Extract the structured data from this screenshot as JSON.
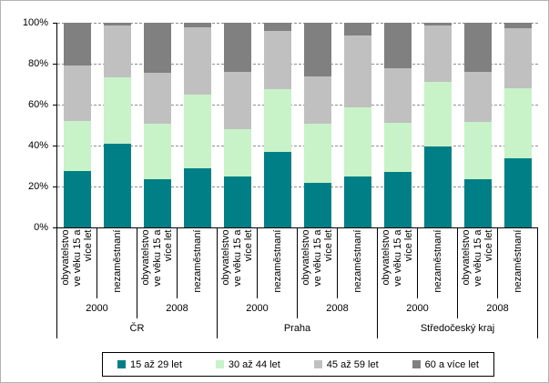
{
  "chart_data": {
    "type": "bar",
    "stacked": true,
    "percent_stacked": true,
    "title": "",
    "xlabel": "",
    "ylabel": "",
    "ylim": [
      0,
      100
    ],
    "y_tick_values": [
      0,
      20,
      40,
      60,
      80,
      100
    ],
    "y_tick_labels": [
      "0%",
      "20%",
      "40%",
      "60%",
      "80%",
      "100%"
    ],
    "grid": "horizontal dashed",
    "legend_position": "bottom",
    "series": [
      {
        "name": "15 až 29 let",
        "color": "#008086"
      },
      {
        "name": "30 až 44 let",
        "color": "#C8F2C8"
      },
      {
        "name": "45 až 59 let",
        "color": "#C0C0C0"
      },
      {
        "name": "60 a více let",
        "color": "#808080"
      }
    ],
    "category_label_lines": {
      "population": [
        "obyvatelstvo",
        "ve věku 15 a",
        "více let"
      ],
      "unemployed": [
        "nezaměstnaní"
      ]
    },
    "regions": [
      {
        "name": "ČR",
        "years": [
          {
            "year": "2000",
            "bars": [
              {
                "label": "obyvatelstvo ve věku 15 a více let",
                "label_key": "population",
                "values": [
                  27.5,
                  24.5,
                  27,
                  21
                ]
              },
              {
                "label": "nezaměstnaní",
                "label_key": "unemployed",
                "values": [
                  41,
                  32.5,
                  25,
                  1.5
                ]
              }
            ]
          },
          {
            "year": "2008",
            "bars": [
              {
                "label": "obyvatelstvo ve věku 15 a více let",
                "label_key": "population",
                "values": [
                  23.5,
                  27,
                  25,
                  24.5
                ]
              },
              {
                "label": "nezaměstnaní",
                "label_key": "unemployed",
                "values": [
                  29,
                  36,
                  33,
                  2
                ]
              }
            ]
          }
        ]
      },
      {
        "name": "Praha",
        "years": [
          {
            "year": "2000",
            "bars": [
              {
                "label": "obyvatelstvo ve věku 15 a více let",
                "label_key": "population",
                "values": [
                  25,
                  23,
                  28,
                  24
                ]
              },
              {
                "label": "nezaměstnaní",
                "label_key": "unemployed",
                "values": [
                  37,
                  30.5,
                  28.5,
                  4
                ]
              }
            ]
          },
          {
            "year": "2008",
            "bars": [
              {
                "label": "obyvatelstvo ve věku 15 a více let",
                "label_key": "population",
                "values": [
                  22,
                  28.5,
                  23.5,
                  26
                ]
              },
              {
                "label": "nezaměstnaní",
                "label_key": "unemployed",
                "values": [
                  25,
                  33.5,
                  35.5,
                  6
                ]
              }
            ]
          }
        ]
      },
      {
        "name": "Středočeský kraj",
        "years": [
          {
            "year": "2000",
            "bars": [
              {
                "label": "obyvatelstvo ve věku 15 a více let",
                "label_key": "population",
                "values": [
                  27,
                  24,
                  27,
                  22
                ]
              },
              {
                "label": "nezaměstnaní",
                "label_key": "unemployed",
                "values": [
                  39.5,
                  31.5,
                  27.5,
                  1.5
                ]
              }
            ]
          },
          {
            "year": "2008",
            "bars": [
              {
                "label": "obyvatelstvo ve věku 15 a více let",
                "label_key": "population",
                "values": [
                  23.5,
                  28,
                  24.5,
                  24
                ]
              },
              {
                "label": "nezaměstnaní",
                "label_key": "unemployed",
                "values": [
                  34,
                  34,
                  29.5,
                  2.5
                ]
              }
            ]
          }
        ]
      }
    ]
  }
}
